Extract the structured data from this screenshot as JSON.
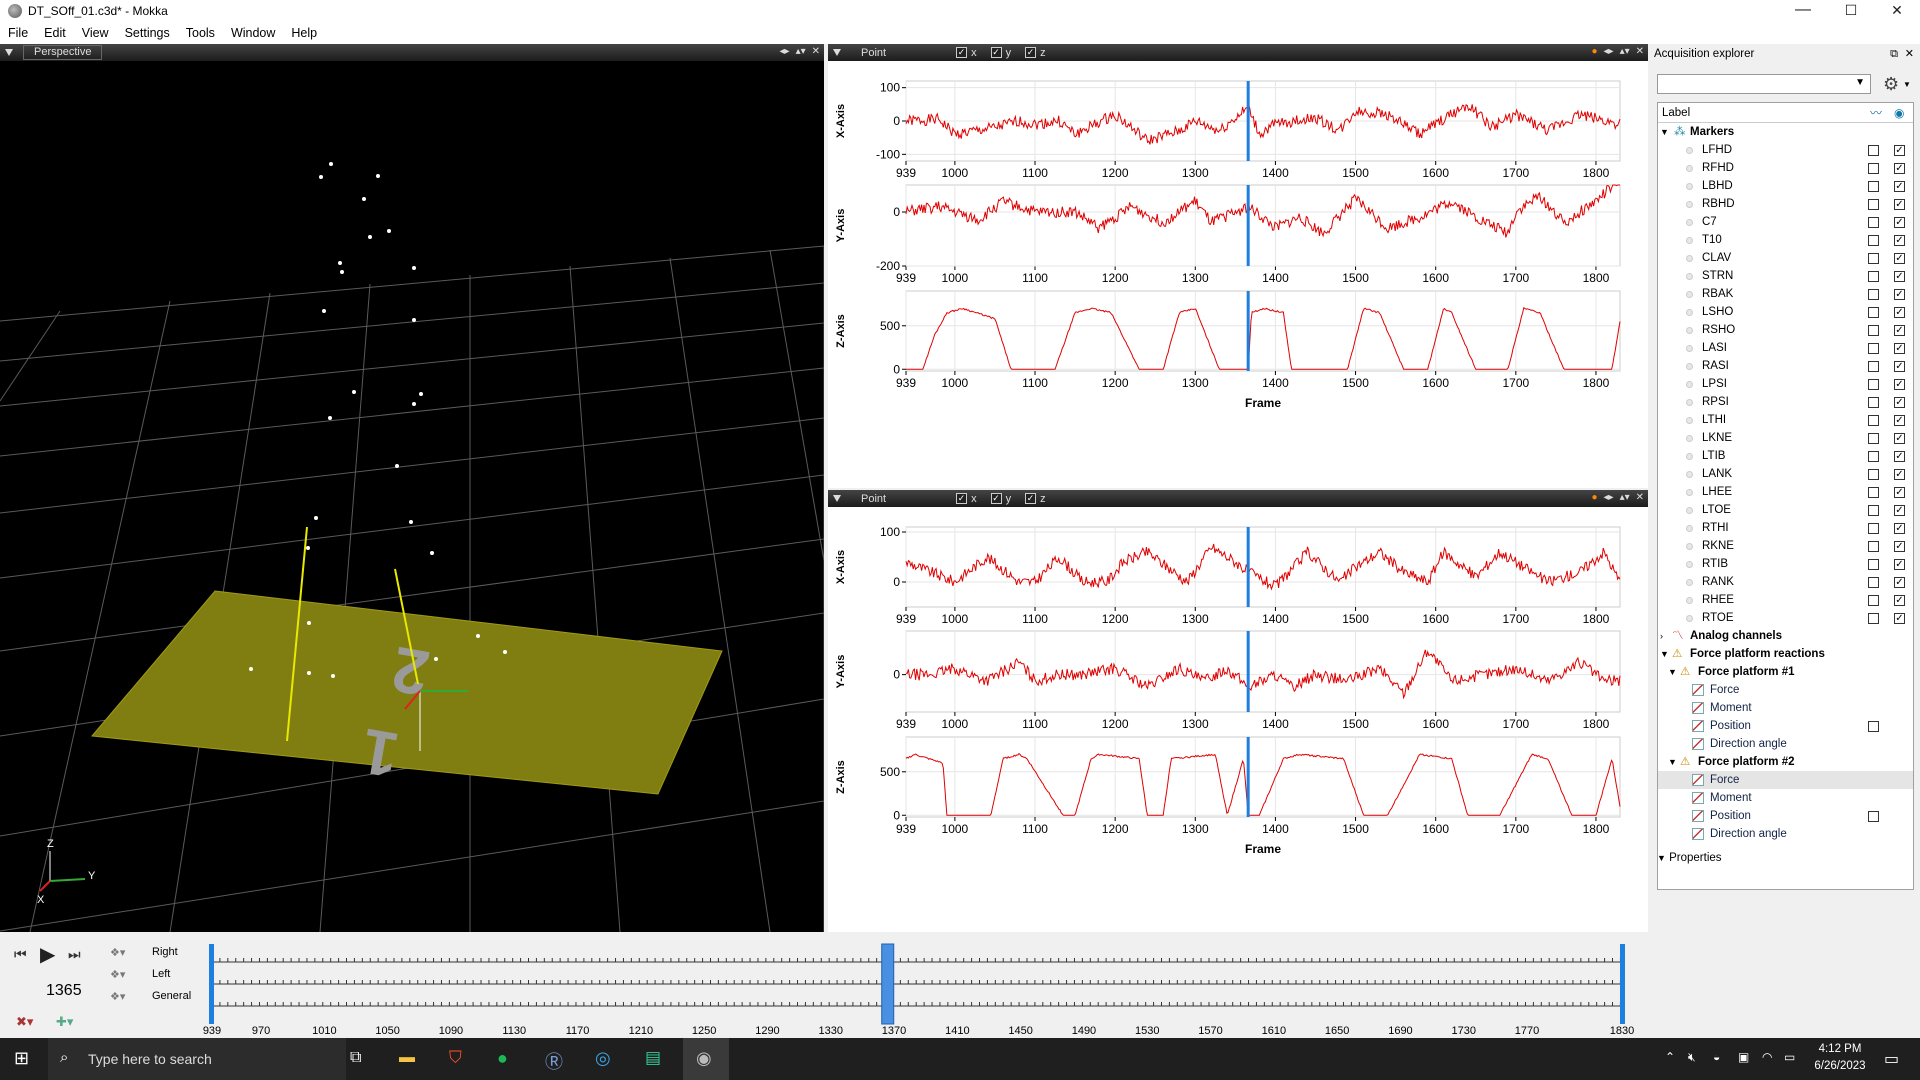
{
  "window": {
    "title": "DT_SOff_01.c3d* - Mokka",
    "min": "—",
    "max": "☐",
    "close": "✕"
  },
  "menu": [
    "File",
    "Edit",
    "View",
    "Settings",
    "Tools",
    "Window",
    "Help"
  ],
  "view3d": {
    "title": "Perspective",
    "axis_z": "Z",
    "axis_y": "Y",
    "axis_x": "X"
  },
  "panel_top": {
    "title": "Point",
    "chk_x": "x",
    "chk_y": "y",
    "chk_z": "z",
    "ylabels": [
      "X-Axis",
      "Y-Axis",
      "Z-Axis"
    ],
    "xlabel": "Frame"
  },
  "panel_bottom": {
    "title": "Point",
    "chk_x": "x",
    "chk_y": "y",
    "chk_z": "z",
    "ylabels": [
      "X-Axis",
      "Y-Axis",
      "Z-Axis"
    ],
    "xlabel": "Frame"
  },
  "chart_data": [
    {
      "type": "line",
      "panel": "top",
      "ylabel": "X-Axis",
      "xlim": [
        939,
        1830
      ],
      "ylim": [
        -120,
        120
      ],
      "yticks": [
        "100",
        "0",
        "-100"
      ],
      "xticks": [
        "939",
        "1000",
        "1100",
        "1200",
        "1300",
        "1400",
        "1500",
        "1600",
        "1700",
        "1800"
      ],
      "series": [
        {
          "x": [
            939,
            980,
            1000,
            1050,
            1080,
            1100,
            1130,
            1150,
            1200,
            1240,
            1280,
            1300,
            1330,
            1366,
            1380,
            1400,
            1450,
            1480,
            1500,
            1540,
            1580,
            1600,
            1640,
            1670,
            1700,
            1740,
            1780,
            1830
          ],
          "y": [
            0,
            5,
            -40,
            -20,
            0,
            -10,
            0,
            -40,
            20,
            -60,
            -30,
            0,
            -30,
            40,
            -40,
            -10,
            10,
            -30,
            30,
            20,
            -40,
            -10,
            50,
            -20,
            20,
            -30,
            20,
            -10
          ]
        }
      ]
    },
    {
      "type": "line",
      "panel": "top",
      "ylabel": "Y-Axis",
      "xlim": [
        939,
        1830
      ],
      "ylim": [
        -200,
        100
      ],
      "yticks": [
        "0",
        "-200"
      ],
      "xticks": [
        "939",
        "1000",
        "1100",
        "1200",
        "1300",
        "1400",
        "1500",
        "1600",
        "1700",
        "1800"
      ],
      "series": [
        {
          "x": [
            939,
            980,
            1030,
            1060,
            1100,
            1150,
            1180,
            1220,
            1260,
            1300,
            1320,
            1366,
            1400,
            1430,
            1460,
            1500,
            1540,
            1580,
            1620,
            1650,
            1690,
            1700,
            1730,
            1760,
            1800,
            1830
          ],
          "y": [
            0,
            20,
            -30,
            40,
            0,
            0,
            -60,
            20,
            -40,
            40,
            -40,
            20,
            -60,
            -20,
            -80,
            50,
            -60,
            -20,
            40,
            -20,
            -80,
            0,
            60,
            -40,
            40,
            120
          ]
        }
      ]
    },
    {
      "type": "line",
      "panel": "top",
      "ylabel": "Z-Axis",
      "xlim": [
        939,
        1830
      ],
      "ylim": [
        -20,
        900
      ],
      "yticks": [
        "500",
        "0"
      ],
      "xticks": [
        "939",
        "1000",
        "1100",
        "1200",
        "1300",
        "1400",
        "1500",
        "1600",
        "1700",
        "1800"
      ],
      "xlabel": "Frame",
      "series": [
        {
          "x": [
            939,
            960,
            975,
            990,
            1010,
            1050,
            1070,
            1090,
            1125,
            1150,
            1170,
            1195,
            1230,
            1260,
            1280,
            1300,
            1330,
            1366,
            1370,
            1385,
            1410,
            1420,
            1450,
            1490,
            1510,
            1530,
            1560,
            1590,
            1610,
            1620,
            1650,
            1690,
            1710,
            1730,
            1760,
            1800,
            1820,
            1830
          ],
          "y": [
            0,
            0,
            400,
            650,
            700,
            580,
            0,
            0,
            0,
            650,
            700,
            650,
            0,
            0,
            650,
            700,
            0,
            0,
            650,
            700,
            650,
            0,
            0,
            0,
            700,
            650,
            0,
            0,
            700,
            650,
            0,
            0,
            700,
            650,
            0,
            0,
            0,
            550
          ]
        }
      ]
    },
    {
      "type": "line",
      "panel": "bottom",
      "ylabel": "X-Axis",
      "xlim": [
        939,
        1830
      ],
      "ylim": [
        -50,
        110
      ],
      "yticks": [
        "100",
        "0"
      ],
      "xticks": [
        "939",
        "1000",
        "1100",
        "1200",
        "1300",
        "1400",
        "1500",
        "1600",
        "1700",
        "1800"
      ],
      "series": [
        {
          "x": [
            939,
            970,
            1000,
            1040,
            1080,
            1100,
            1130,
            1160,
            1190,
            1210,
            1240,
            1290,
            1320,
            1350,
            1366,
            1400,
            1440,
            1480,
            1500,
            1530,
            1560,
            1590,
            1610,
            1650,
            1680,
            1710,
            1740,
            1780,
            1810,
            1830
          ],
          "y": [
            40,
            20,
            0,
            50,
            0,
            0,
            50,
            0,
            0,
            40,
            60,
            0,
            70,
            40,
            20,
            -10,
            60,
            0,
            30,
            60,
            20,
            0,
            60,
            10,
            60,
            30,
            0,
            20,
            60,
            0
          ]
        }
      ]
    },
    {
      "type": "line",
      "panel": "bottom",
      "ylabel": "Y-Axis",
      "xlim": [
        939,
        1830
      ],
      "ylim": [
        -60,
        70
      ],
      "yticks": [
        "0"
      ],
      "xticks": [
        "939",
        "1000",
        "1100",
        "1200",
        "1300",
        "1400",
        "1500",
        "1600",
        "1700",
        "1800"
      ],
      "series": [
        {
          "x": [
            939,
            970,
            1000,
            1040,
            1080,
            1100,
            1130,
            1160,
            1200,
            1240,
            1280,
            1310,
            1340,
            1366,
            1400,
            1420,
            1450,
            1490,
            1530,
            1560,
            1590,
            1620,
            1660,
            1700,
            1740,
            1780,
            1810,
            1830
          ],
          "y": [
            0,
            0,
            10,
            -10,
            20,
            -10,
            0,
            0,
            10,
            -20,
            10,
            -10,
            10,
            -20,
            0,
            -20,
            0,
            -10,
            10,
            -30,
            40,
            -10,
            0,
            10,
            -10,
            20,
            -10,
            -10
          ]
        }
      ]
    },
    {
      "type": "line",
      "panel": "bottom",
      "ylabel": "Z-Axis",
      "xlim": [
        939,
        1830
      ],
      "ylim": [
        -20,
        900
      ],
      "yticks": [
        "500",
        "0"
      ],
      "xticks": [
        "939",
        "1000",
        "1100",
        "1200",
        "1300",
        "1400",
        "1500",
        "1600",
        "1700",
        "1800"
      ],
      "xlabel": "Frame",
      "series": [
        {
          "x": [
            939,
            950,
            985,
            990,
            1045,
            1060,
            1080,
            1090,
            1135,
            1150,
            1170,
            1180,
            1230,
            1240,
            1260,
            1270,
            1325,
            1340,
            1360,
            1366,
            1380,
            1410,
            1430,
            1485,
            1510,
            1540,
            1580,
            1620,
            1640,
            1680,
            1720,
            1740,
            1770,
            1800,
            1820,
            1830
          ],
          "y": [
            650,
            700,
            600,
            0,
            0,
            650,
            700,
            650,
            0,
            0,
            650,
            700,
            650,
            0,
            0,
            650,
            700,
            0,
            650,
            0,
            0,
            650,
            700,
            650,
            0,
            0,
            700,
            650,
            0,
            0,
            700,
            650,
            0,
            0,
            650,
            100
          ]
        }
      ]
    }
  ],
  "explorer": {
    "title": "Acquisition explorer",
    "col_label": "Label",
    "markers_label": "Markers",
    "markers": [
      "LFHD",
      "RFHD",
      "LBHD",
      "RBHD",
      "C7",
      "T10",
      "CLAV",
      "STRN",
      "RBAK",
      "LSHO",
      "RSHO",
      "LASI",
      "RASI",
      "LPSI",
      "RPSI",
      "LTHI",
      "LKNE",
      "LTIB",
      "LANK",
      "LHEE",
      "LTOE",
      "RTHI",
      "RKNE",
      "RTIB",
      "RANK",
      "RHEE",
      "RTOE"
    ],
    "analog_label": "Analog channels",
    "fpr_label": "Force platform reactions",
    "fp1": {
      "label": "Force platform #1",
      "items": [
        "Force",
        "Moment",
        "Position",
        "Direction angle"
      ]
    },
    "fp2": {
      "label": "Force platform #2",
      "items": [
        "Force",
        "Moment",
        "Position",
        "Direction angle"
      ]
    },
    "properties_label": "Properties"
  },
  "timeline": {
    "current_frame": "1365",
    "tracks": [
      "Right",
      "Left",
      "General"
    ],
    "ticks": [
      "939",
      "970",
      "1010",
      "1050",
      "1090",
      "1130",
      "1170",
      "1210",
      "1250",
      "1290",
      "1330",
      "1370",
      "1410",
      "1450",
      "1490",
      "1530",
      "1570",
      "1610",
      "1650",
      "1690",
      "1730",
      "1770",
      "1830"
    ]
  },
  "taskbar": {
    "search_placeholder": "Type here to search",
    "time": "4:12 PM",
    "date": "6/26/2023"
  }
}
